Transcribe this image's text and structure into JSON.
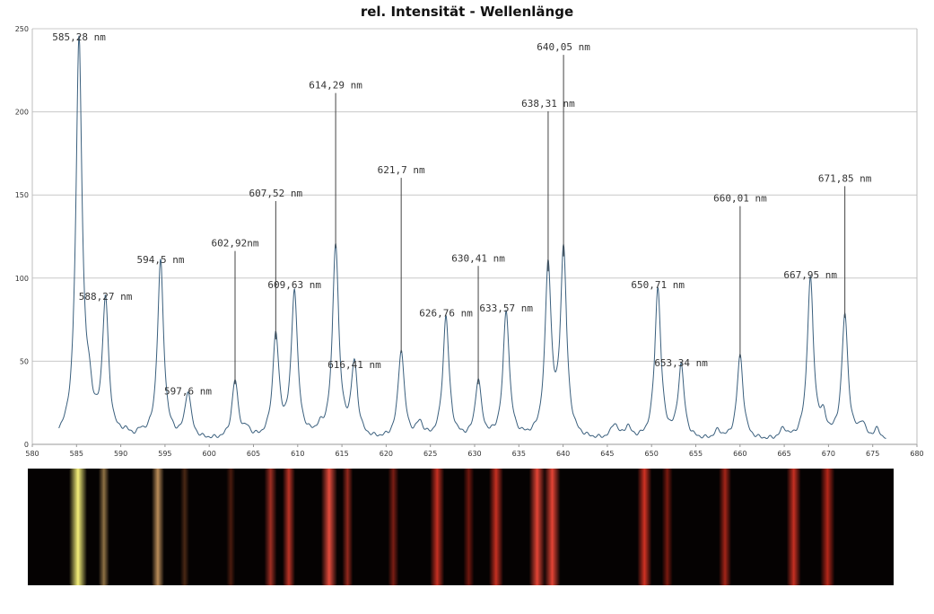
{
  "chart_data": {
    "type": "line",
    "title": "rel. Intensität - Wellenlänge",
    "xlabel": "",
    "ylabel": "",
    "xlim": [
      580,
      680
    ],
    "ylim": [
      0,
      250
    ],
    "grid": true,
    "x_ticks": [
      580,
      585,
      590,
      595,
      600,
      605,
      610,
      615,
      620,
      625,
      630,
      635,
      640,
      645,
      650,
      655,
      660,
      665,
      670,
      675,
      680
    ],
    "y_ticks": [
      0,
      50,
      100,
      150,
      200,
      250
    ],
    "line_color": "#3a5f7d",
    "peaks": [
      {
        "x": 585.28,
        "y": 240,
        "label": "585,28 nm",
        "label_y": 243,
        "has_line": false
      },
      {
        "x": 588.27,
        "y": 82,
        "label": "588,27 nm",
        "label_y": 87,
        "has_line": false
      },
      {
        "x": 594.5,
        "y": 107,
        "label": "594,5 nm",
        "label_y": 109,
        "has_line": false
      },
      {
        "x": 597.6,
        "y": 28,
        "label": "597,6 nm",
        "label_y": 30,
        "has_line": false
      },
      {
        "x": 602.92,
        "y": 35,
        "label": "602,92nm",
        "label_y": 119,
        "has_line": true
      },
      {
        "x": 607.52,
        "y": 62,
        "label": "607,52 nm",
        "label_y": 149,
        "has_line": true
      },
      {
        "x": 609.63,
        "y": 89,
        "label": "609,63 nm",
        "label_y": 94,
        "has_line": false
      },
      {
        "x": 614.29,
        "y": 117,
        "label": "614,29 nm",
        "label_y": 214,
        "has_line": true
      },
      {
        "x": 616.41,
        "y": 44,
        "label": "616,41 nm",
        "label_y": 46,
        "has_line": false
      },
      {
        "x": 621.7,
        "y": 54,
        "label": "621,7 nm",
        "label_y": 163,
        "has_line": true
      },
      {
        "x": 626.76,
        "y": 74,
        "label": "626,76 nm",
        "label_y": 77,
        "has_line": false
      },
      {
        "x": 630.41,
        "y": 35,
        "label": "630,41 nm",
        "label_y": 110,
        "has_line": true
      },
      {
        "x": 633.57,
        "y": 77,
        "label": "633,57 nm",
        "label_y": 80,
        "has_line": false
      },
      {
        "x": 638.31,
        "y": 103,
        "label": "638,31 nm",
        "label_y": 203,
        "has_line": true
      },
      {
        "x": 640.05,
        "y": 112,
        "label": "640,05 nm",
        "label_y": 237,
        "has_line": true
      },
      {
        "x": 650.71,
        "y": 91,
        "label": "650,71 nm",
        "label_y": 94,
        "has_line": false
      },
      {
        "x": 653.34,
        "y": 44,
        "label": "653,34 nm",
        "label_y": 47,
        "has_line": false
      },
      {
        "x": 660.01,
        "y": 51,
        "label": "660,01 nm",
        "label_y": 146,
        "has_line": true
      },
      {
        "x": 667.95,
        "y": 97,
        "label": "667,95 nm",
        "label_y": 100,
        "has_line": false
      },
      {
        "x": 671.85,
        "y": 75,
        "label": "671,85 nm",
        "label_y": 158,
        "has_line": true
      }
    ],
    "minor_peaks": [
      {
        "x": 586.4,
        "y": 20
      },
      {
        "x": 590.5,
        "y": 3
      },
      {
        "x": 592.3,
        "y": 3
      },
      {
        "x": 604.3,
        "y": 5
      },
      {
        "x": 612.5,
        "y": 4
      },
      {
        "x": 623.8,
        "y": 9
      },
      {
        "x": 645.8,
        "y": 9
      },
      {
        "x": 647.3,
        "y": 7
      },
      {
        "x": 657.5,
        "y": 5
      },
      {
        "x": 664.9,
        "y": 6
      },
      {
        "x": 669.4,
        "y": 11
      },
      {
        "x": 673.8,
        "y": 9
      },
      {
        "x": 675.5,
        "y": 6
      }
    ],
    "x_range": [
      583,
      676.5
    ]
  },
  "spectrum_strip": {
    "background": "#050202",
    "bands": [
      {
        "x": 585.28,
        "w": 10,
        "color": "#f5f07a",
        "alpha": 1.0
      },
      {
        "x": 588.27,
        "w": 6,
        "color": "#c8a060",
        "alpha": 0.7
      },
      {
        "x": 594.5,
        "w": 7,
        "color": "#e8b070",
        "alpha": 0.8
      },
      {
        "x": 597.6,
        "w": 5,
        "color": "#b06030",
        "alpha": 0.4
      },
      {
        "x": 602.92,
        "w": 5,
        "color": "#b04020",
        "alpha": 0.4
      },
      {
        "x": 607.52,
        "w": 7,
        "color": "#e04030",
        "alpha": 0.7
      },
      {
        "x": 609.63,
        "w": 7,
        "color": "#e84030",
        "alpha": 0.8
      },
      {
        "x": 614.29,
        "w": 9,
        "color": "#f05040",
        "alpha": 0.95
      },
      {
        "x": 616.41,
        "w": 6,
        "color": "#d03828",
        "alpha": 0.7
      },
      {
        "x": 621.7,
        "w": 6,
        "color": "#c83020",
        "alpha": 0.6
      },
      {
        "x": 626.76,
        "w": 8,
        "color": "#e83828",
        "alpha": 0.85
      },
      {
        "x": 630.41,
        "w": 6,
        "color": "#c82818",
        "alpha": 0.55
      },
      {
        "x": 633.57,
        "w": 8,
        "color": "#e83828",
        "alpha": 0.85
      },
      {
        "x": 638.31,
        "w": 9,
        "color": "#f04838",
        "alpha": 0.95
      },
      {
        "x": 640.05,
        "w": 9,
        "color": "#f04838",
        "alpha": 0.95
      },
      {
        "x": 650.71,
        "w": 8,
        "color": "#e83828",
        "alpha": 0.9
      },
      {
        "x": 653.34,
        "w": 6,
        "color": "#c82818",
        "alpha": 0.6
      },
      {
        "x": 660.01,
        "w": 7,
        "color": "#d83020",
        "alpha": 0.75
      },
      {
        "x": 667.95,
        "w": 8,
        "color": "#e83828",
        "alpha": 0.85
      },
      {
        "x": 671.85,
        "w": 8,
        "color": "#e03020",
        "alpha": 0.8
      }
    ]
  }
}
